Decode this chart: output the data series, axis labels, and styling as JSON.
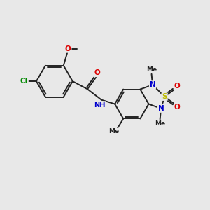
{
  "bg_color": "#e8e8e8",
  "bond_color": "#222222",
  "bond_width": 1.4,
  "atom_colors": {
    "O": "#dd0000",
    "N": "#0000cc",
    "S": "#bbbb00",
    "Cl": "#008800",
    "C": "#222222",
    "H": "#444444"
  },
  "font_size_atom": 7.5,
  "font_size_me": 6.5,
  "figsize": [
    3.0,
    3.0
  ],
  "dpi": 100,
  "xlim": [
    0,
    10
  ],
  "ylim": [
    0,
    10
  ]
}
